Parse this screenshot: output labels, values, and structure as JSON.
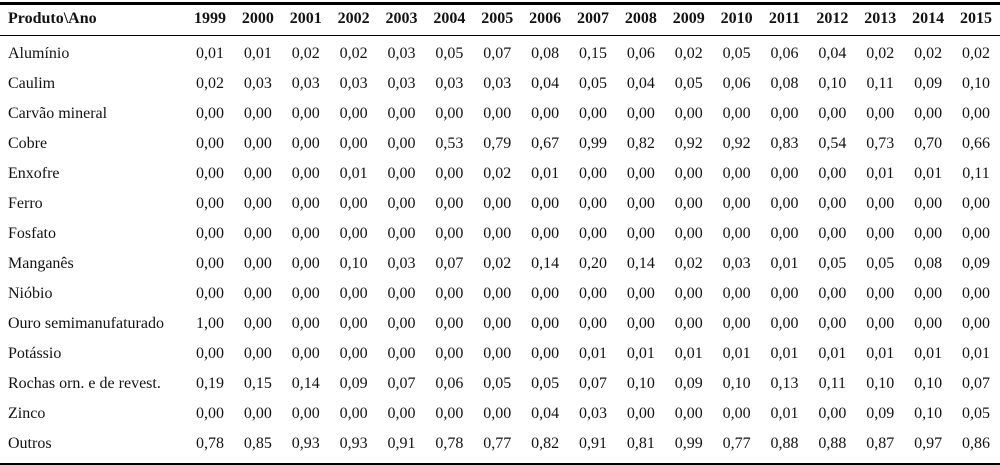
{
  "table": {
    "header_col": "Produto\\Ano",
    "years": [
      "1999",
      "2000",
      "2001",
      "2002",
      "2003",
      "2004",
      "2005",
      "2006",
      "2007",
      "2008",
      "2009",
      "2010",
      "2011",
      "2012",
      "2013",
      "2014",
      "2015"
    ],
    "rows": [
      {
        "label": "Alumínio",
        "values": [
          "0,01",
          "0,01",
          "0,02",
          "0,02",
          "0,03",
          "0,05",
          "0,07",
          "0,08",
          "0,15",
          "0,06",
          "0,02",
          "0,05",
          "0,06",
          "0,04",
          "0,02",
          "0,02",
          "0,02"
        ]
      },
      {
        "label": "Caulim",
        "values": [
          "0,02",
          "0,03",
          "0,03",
          "0,03",
          "0,03",
          "0,03",
          "0,03",
          "0,04",
          "0,05",
          "0,04",
          "0,05",
          "0,06",
          "0,08",
          "0,10",
          "0,11",
          "0,09",
          "0,10"
        ]
      },
      {
        "label": "Carvão mineral",
        "values": [
          "0,00",
          "0,00",
          "0,00",
          "0,00",
          "0,00",
          "0,00",
          "0,00",
          "0,00",
          "0,00",
          "0,00",
          "0,00",
          "0,00",
          "0,00",
          "0,00",
          "0,00",
          "0,00",
          "0,00"
        ]
      },
      {
        "label": "Cobre",
        "values": [
          "0,00",
          "0,00",
          "0,00",
          "0,00",
          "0,00",
          "0,53",
          "0,79",
          "0,67",
          "0,99",
          "0,82",
          "0,92",
          "0,92",
          "0,83",
          "0,54",
          "0,73",
          "0,70",
          "0,66"
        ]
      },
      {
        "label": "Enxofre",
        "values": [
          "0,00",
          "0,00",
          "0,00",
          "0,01",
          "0,00",
          "0,00",
          "0,02",
          "0,01",
          "0,00",
          "0,00",
          "0,00",
          "0,00",
          "0,00",
          "0,00",
          "0,01",
          "0,01",
          "0,11"
        ]
      },
      {
        "label": "Ferro",
        "values": [
          "0,00",
          "0,00",
          "0,00",
          "0,00",
          "0,00",
          "0,00",
          "0,00",
          "0,00",
          "0,00",
          "0,00",
          "0,00",
          "0,00",
          "0,00",
          "0,00",
          "0,00",
          "0,00",
          "0,00"
        ]
      },
      {
        "label": "Fosfato",
        "values": [
          "0,00",
          "0,00",
          "0,00",
          "0,00",
          "0,00",
          "0,00",
          "0,00",
          "0,00",
          "0,00",
          "0,00",
          "0,00",
          "0,00",
          "0,00",
          "0,00",
          "0,00",
          "0,00",
          "0,00"
        ]
      },
      {
        "label": "Manganês",
        "values": [
          "0,00",
          "0,00",
          "0,00",
          "0,10",
          "0,03",
          "0,07",
          "0,02",
          "0,14",
          "0,20",
          "0,14",
          "0,02",
          "0,03",
          "0,01",
          "0,05",
          "0,05",
          "0,08",
          "0,09"
        ]
      },
      {
        "label": "Nióbio",
        "values": [
          "0,00",
          "0,00",
          "0,00",
          "0,00",
          "0,00",
          "0,00",
          "0,00",
          "0,00",
          "0,00",
          "0,00",
          "0,00",
          "0,00",
          "0,00",
          "0,00",
          "0,00",
          "0,00",
          "0,00"
        ]
      },
      {
        "label": "Ouro semimanufaturado",
        "values": [
          "1,00",
          "0,00",
          "0,00",
          "0,00",
          "0,00",
          "0,00",
          "0,00",
          "0,00",
          "0,00",
          "0,00",
          "0,00",
          "0,00",
          "0,00",
          "0,00",
          "0,00",
          "0,00",
          "0,00"
        ]
      },
      {
        "label": "Potássio",
        "values": [
          "0,00",
          "0,00",
          "0,00",
          "0,00",
          "0,00",
          "0,00",
          "0,00",
          "0,00",
          "0,01",
          "0,01",
          "0,01",
          "0,01",
          "0,01",
          "0,01",
          "0,01",
          "0,01",
          "0,01"
        ]
      },
      {
        "label": "Rochas orn. e de revest.",
        "values": [
          "0,19",
          "0,15",
          "0,14",
          "0,09",
          "0,07",
          "0,06",
          "0,05",
          "0,05",
          "0,07",
          "0,10",
          "0,09",
          "0,10",
          "0,13",
          "0,11",
          "0,10",
          "0,10",
          "0,07"
        ]
      },
      {
        "label": "Zinco",
        "values": [
          "0,00",
          "0,00",
          "0,00",
          "0,00",
          "0,00",
          "0,00",
          "0,00",
          "0,04",
          "0,03",
          "0,00",
          "0,00",
          "0,00",
          "0,01",
          "0,00",
          "0,09",
          "0,10",
          "0,05"
        ]
      },
      {
        "label": "Outros",
        "values": [
          "0,78",
          "0,85",
          "0,93",
          "0,93",
          "0,91",
          "0,78",
          "0,77",
          "0,82",
          "0,91",
          "0,81",
          "0,99",
          "0,77",
          "0,88",
          "0,88",
          "0,87",
          "0,97",
          "0,86"
        ]
      }
    ]
  }
}
